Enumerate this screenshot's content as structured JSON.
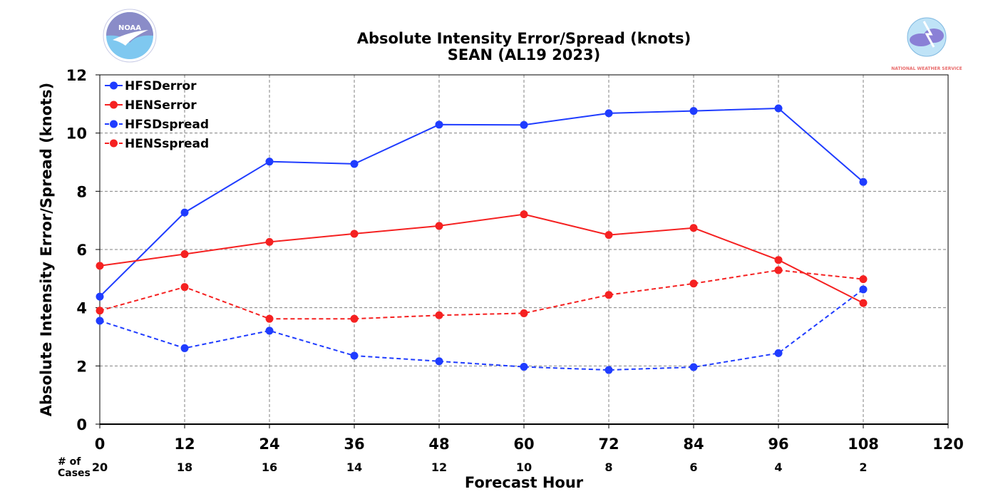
{
  "chart_data": {
    "type": "line",
    "title": "Absolute Intensity Error/Spread (knots)",
    "subtitle": "SEAN (AL19 2023)",
    "xlabel": "Forecast Hour",
    "ylabel": "Absolute Intensity Error/Spread (knots)",
    "xlim": [
      0,
      120
    ],
    "ylim": [
      0,
      12
    ],
    "x_ticks": [
      0,
      12,
      24,
      36,
      48,
      60,
      72,
      84,
      96,
      108,
      120
    ],
    "y_ticks": [
      0,
      2,
      4,
      6,
      8,
      10,
      12
    ],
    "grid": true,
    "legend_position": "top-left",
    "cases_header": [
      "# of",
      "Cases"
    ],
    "cases_x": [
      0,
      12,
      24,
      36,
      48,
      60,
      72,
      84,
      96,
      108
    ],
    "cases": [
      20,
      18,
      16,
      14,
      12,
      10,
      8,
      6,
      4,
      2
    ],
    "x": [
      0,
      12,
      24,
      36,
      48,
      60,
      72,
      84,
      96,
      108
    ],
    "series": [
      {
        "name": "HFSDerror",
        "color": "#1f3cff",
        "style": "solid",
        "values": [
          4.38,
          7.27,
          9.02,
          8.94,
          10.29,
          10.28,
          10.68,
          10.76,
          10.85,
          8.32
        ]
      },
      {
        "name": "HENSerror",
        "color": "#f52121",
        "style": "solid",
        "values": [
          5.44,
          5.84,
          6.26,
          6.54,
          6.81,
          7.21,
          6.5,
          6.74,
          5.64,
          4.16
        ]
      },
      {
        "name": "HFSDspread",
        "color": "#1f3cff",
        "style": "dashed",
        "values": [
          3.55,
          2.61,
          3.21,
          2.35,
          2.16,
          1.97,
          1.86,
          1.96,
          2.44,
          4.63
        ]
      },
      {
        "name": "HENSspread",
        "color": "#f52121",
        "style": "dashed",
        "values": [
          3.9,
          4.71,
          3.62,
          3.62,
          3.74,
          3.81,
          4.44,
          4.83,
          5.29,
          4.98
        ]
      }
    ]
  },
  "logos": {
    "left": {
      "icon": "noaa-logo",
      "text": "NOAA"
    },
    "right": {
      "icon": "nws-logo",
      "text": "NATIONAL WEATHER SERVICE"
    }
  }
}
